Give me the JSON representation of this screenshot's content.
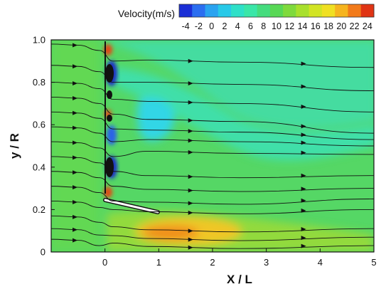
{
  "chart_data": {
    "type": "heatmap",
    "title": "",
    "xlabel": "X / L",
    "ylabel": "y / R",
    "xlim": [
      -1,
      5
    ],
    "ylim": [
      0,
      1.0
    ],
    "x_ticks": [
      "0",
      "1",
      "2",
      "3",
      "4",
      "5"
    ],
    "y_ticks": [
      "0",
      "0.2",
      "0.4",
      "0.6",
      "0.8",
      "1.0"
    ],
    "colorbar": {
      "title": "Velocity(m/s)",
      "min": -5,
      "max": 25,
      "tick_labels": [
        "-4",
        "-2",
        "0",
        "2",
        "4",
        "6",
        "8",
        "10",
        "12",
        "14",
        "16",
        "18",
        "20",
        "22",
        "24"
      ],
      "colors": [
        "#1b2fd6",
        "#2b6ef0",
        "#2aa3f0",
        "#28c9e8",
        "#2ee0c8",
        "#3ae6a8",
        "#45dc7e",
        "#58d855",
        "#7fda3c",
        "#a8e02c",
        "#d2e424",
        "#f0e022",
        "#f6b41e",
        "#f27a1a",
        "#e03414"
      ]
    },
    "features": {
      "blades_x": 0.0,
      "inclined_plate": {
        "from": [
          0.0,
          0.25
        ],
        "to": [
          1.0,
          0.18
        ]
      },
      "high_velocity_zone": {
        "x": [
          0.2,
          2.6
        ],
        "y": [
          0.0,
          0.14
        ],
        "peak_velocity": 22
      },
      "low_velocity_zone": {
        "x": [
          0.5,
          1.2
        ],
        "y": [
          0.55,
          0.7
        ],
        "velocity": 6
      }
    },
    "streamline_start_y": [
      0.98,
      0.88,
      0.8,
      0.73,
      0.66,
      0.59,
      0.52,
      0.45,
      0.38,
      0.31,
      0.24,
      0.17,
      0.11,
      0.06
    ],
    "streamline_end_y": [
      0.87,
      0.76,
      0.66,
      0.56,
      0.53,
      0.5,
      0.46,
      0.36,
      0.3,
      0.25,
      0.2,
      0.11,
      0.07,
      0.03
    ]
  }
}
